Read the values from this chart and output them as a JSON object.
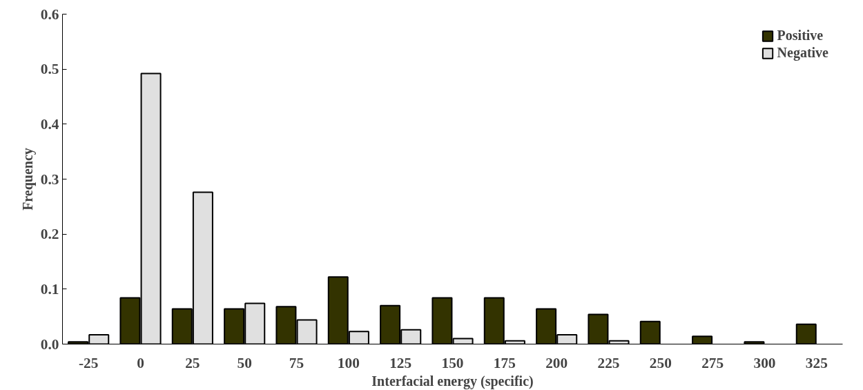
{
  "chart_data": {
    "type": "bar",
    "xlabel": "Interfacial energy (specific)",
    "ylabel": "Frequency",
    "categories": [
      "-25",
      "0",
      "25",
      "50",
      "75",
      "100",
      "125",
      "150",
      "175",
      "200",
      "225",
      "250",
      "275",
      "300",
      "325"
    ],
    "series": [
      {
        "name": "Positive",
        "color": "#333300",
        "values": [
          0.004,
          0.084,
          0.064,
          0.064,
          0.068,
          0.122,
          0.07,
          0.084,
          0.084,
          0.064,
          0.054,
          0.041,
          0.014,
          0.004,
          0.036
        ]
      },
      {
        "name": "Negative",
        "color": "#e0e0e0",
        "values": [
          0.017,
          0.492,
          0.276,
          0.074,
          0.044,
          0.023,
          0.026,
          0.01,
          0.006,
          0.017,
          0.006,
          null,
          null,
          null,
          null
        ]
      }
    ],
    "ylim": [
      0,
      0.6
    ],
    "yticks": [
      {
        "value": 0,
        "label": "0.0"
      },
      0.1,
      0.2,
      0.3,
      0.4,
      0.5,
      0.6
    ],
    "grid": false,
    "legend": "top right"
  }
}
